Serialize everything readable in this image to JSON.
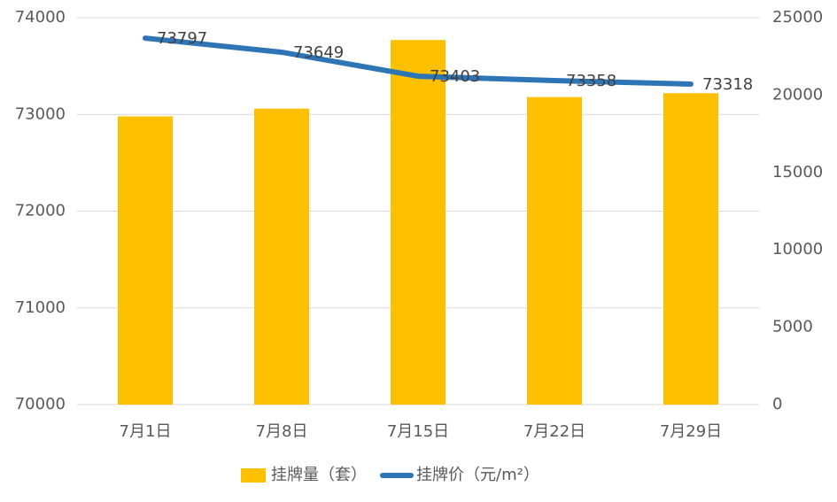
{
  "chart_data": {
    "type": "bar-line",
    "categories": [
      "7月1日",
      "7月8日",
      "7月15日",
      "7月22日",
      "7月29日"
    ],
    "series": [
      {
        "name": "挂牌量（套）",
        "type": "bar",
        "color": "#FFC000",
        "values": [
          72980,
          73060,
          73770,
          73180,
          73220
        ]
      },
      {
        "name": "挂牌价（元/m²）",
        "type": "line",
        "axis": "y2",
        "color": "#2E75B6",
        "values": [
          23680,
          22770,
          21220,
          20940,
          20710
        ]
      }
    ],
    "annotations": [
      "73797",
      "73649",
      "73403",
      "73358",
      "73318"
    ],
    "ylim": [
      70000,
      74000
    ],
    "yticks": [
      70000,
      71000,
      72000,
      73000,
      74000
    ],
    "y2lim": [
      0,
      25000
    ],
    "y2ticks": [
      0,
      5000,
      10000,
      15000,
      20000,
      25000
    ],
    "grid": true,
    "legend": "bottom"
  }
}
